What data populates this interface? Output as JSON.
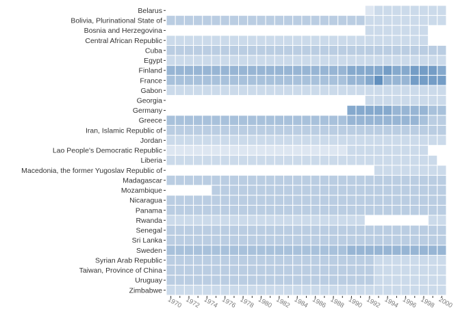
{
  "chart_data": {
    "type": "heatmap",
    "title": "",
    "xlabel": "",
    "ylabel": "",
    "color_low": "#eef2f8",
    "color_high": "#3f78b0",
    "value_range": [
      0,
      10
    ],
    "x": [
      1970,
      1971,
      1972,
      1973,
      1974,
      1975,
      1976,
      1977,
      1978,
      1979,
      1980,
      1981,
      1982,
      1983,
      1984,
      1985,
      1986,
      1987,
      1988,
      1989,
      1990,
      1991,
      1992,
      1993,
      1994,
      1995,
      1996,
      1997,
      1998,
      1999,
      2000
    ],
    "x_tick_labels": [
      "1970",
      "1972",
      "1974",
      "1976",
      "1978",
      "1980",
      "1982",
      "1984",
      "1986",
      "1988",
      "1990",
      "1992",
      "1994",
      "1996",
      "1998",
      "2000"
    ],
    "y": [
      "Belarus",
      "Bolivia, Plurinational State of",
      "Bosnia and Herzegovina",
      "Central African Republic",
      "Cuba",
      "Egypt",
      "Finland",
      "France",
      "Gabon",
      "Georgia",
      "Germany",
      "Greece",
      "Iran, Islamic Republic of",
      "Jordan",
      "Lao People's Democratic Republic",
      "Liberia",
      "Macedonia, the former Yugoslav Republic of",
      "Madagascar",
      "Mozambique",
      "Nicaragua",
      "Panama",
      "Rwanda",
      "Senegal",
      "Sri Lanka",
      "Sweden",
      "Syrian Arab Republic",
      "Taiwan, Province of China",
      "Uruguay",
      "Zimbabwe"
    ],
    "values": [
      [
        null,
        null,
        null,
        null,
        null,
        null,
        null,
        null,
        null,
        null,
        null,
        null,
        null,
        null,
        null,
        null,
        null,
        null,
        null,
        null,
        null,
        null,
        1,
        2,
        2,
        2,
        2,
        2,
        2,
        2,
        2
      ],
      [
        3,
        3,
        3,
        3,
        3,
        3,
        3,
        3,
        3,
        3,
        3,
        3,
        3,
        3,
        3,
        3,
        3,
        3,
        3,
        3,
        3,
        3,
        2,
        2,
        2,
        2,
        2,
        2,
        2,
        2,
        2
      ],
      [
        null,
        null,
        null,
        null,
        null,
        null,
        null,
        null,
        null,
        null,
        null,
        null,
        null,
        null,
        null,
        null,
        null,
        null,
        null,
        null,
        null,
        null,
        2,
        2,
        2,
        2,
        2,
        2,
        2,
        null,
        null
      ],
      [
        2,
        2,
        2,
        2,
        2,
        2,
        2,
        2,
        2,
        2,
        2,
        2,
        2,
        2,
        2,
        2,
        2,
        2,
        2,
        2,
        2,
        2,
        2,
        2,
        2,
        2,
        2,
        2,
        2,
        null,
        null
      ],
      [
        3,
        3,
        3,
        3,
        3,
        3,
        3,
        3,
        3,
        3,
        3,
        3,
        3,
        3,
        3,
        3,
        3,
        3,
        3,
        3,
        3,
        3,
        3,
        3,
        3,
        3,
        3,
        3,
        3,
        3,
        3
      ],
      [
        2,
        2,
        2,
        2,
        2,
        2,
        2,
        2,
        2,
        2,
        2,
        2,
        2,
        2,
        2,
        2,
        2,
        2,
        2,
        2,
        2,
        2,
        2,
        2,
        2,
        2,
        2,
        2,
        2,
        2,
        2
      ],
      [
        5,
        5,
        5,
        5,
        5,
        5,
        5,
        5,
        5,
        5,
        5,
        5,
        5,
        5,
        5,
        5,
        5,
        5,
        5,
        5,
        6,
        6,
        6,
        6,
        7,
        6,
        6,
        7,
        7,
        7,
        6
      ],
      [
        4,
        4,
        4,
        4,
        4,
        4,
        4,
        4,
        4,
        4,
        4,
        4,
        4,
        4,
        4,
        4,
        4,
        4,
        4,
        4,
        5,
        5,
        6,
        8,
        5,
        5,
        5,
        7,
        7,
        7,
        7
      ],
      [
        2,
        2,
        2,
        2,
        2,
        2,
        2,
        2,
        2,
        2,
        2,
        2,
        2,
        2,
        2,
        2,
        2,
        2,
        2,
        2,
        2,
        2,
        2,
        2,
        2,
        2,
        2,
        2,
        2,
        2,
        2
      ],
      [
        null,
        null,
        null,
        null,
        null,
        null,
        null,
        null,
        null,
        null,
        null,
        null,
        null,
        null,
        null,
        null,
        null,
        null,
        null,
        null,
        null,
        null,
        2,
        2,
        2,
        2,
        2,
        2,
        2,
        2,
        2
      ],
      [
        null,
        null,
        null,
        null,
        null,
        null,
        null,
        null,
        null,
        null,
        null,
        null,
        null,
        null,
        null,
        null,
        null,
        null,
        null,
        null,
        6,
        6,
        6,
        6,
        6,
        5,
        5,
        5,
        5,
        4,
        4
      ],
      [
        4,
        4,
        4,
        4,
        4,
        4,
        4,
        4,
        4,
        4,
        4,
        4,
        4,
        4,
        4,
        4,
        4,
        4,
        4,
        4,
        5,
        5,
        5,
        5,
        5,
        5,
        5,
        5,
        4,
        3,
        3
      ],
      [
        3,
        3,
        3,
        3,
        3,
        3,
        3,
        3,
        3,
        3,
        3,
        3,
        3,
        3,
        3,
        3,
        3,
        3,
        3,
        3,
        3,
        3,
        3,
        3,
        3,
        3,
        3,
        3,
        3,
        3,
        3
      ],
      [
        2,
        2,
        2,
        2,
        2,
        2,
        2,
        2,
        2,
        2,
        2,
        2,
        2,
        2,
        2,
        2,
        2,
        2,
        2,
        2,
        2,
        2,
        2,
        2,
        2,
        2,
        2,
        2,
        2,
        2,
        2
      ],
      [
        1,
        1,
        1,
        1,
        1,
        1,
        1,
        1,
        1,
        1,
        1,
        1,
        1,
        1,
        1,
        1,
        1,
        1,
        1,
        1,
        2,
        2,
        2,
        2,
        2,
        2,
        2,
        2,
        2,
        null,
        null
      ],
      [
        2,
        2,
        2,
        2,
        2,
        2,
        2,
        2,
        2,
        2,
        2,
        2,
        2,
        2,
        2,
        2,
        2,
        2,
        2,
        2,
        2,
        2,
        2,
        2,
        2,
        2,
        2,
        2,
        2,
        2,
        null
      ],
      [
        null,
        null,
        null,
        null,
        null,
        null,
        null,
        null,
        null,
        null,
        null,
        null,
        null,
        null,
        null,
        null,
        null,
        null,
        null,
        null,
        null,
        null,
        null,
        2,
        2,
        2,
        2,
        2,
        2,
        2,
        2
      ],
      [
        3,
        3,
        3,
        3,
        3,
        3,
        3,
        3,
        3,
        3,
        3,
        3,
        3,
        3,
        3,
        3,
        3,
        3,
        3,
        3,
        3,
        3,
        3,
        3,
        3,
        3,
        3,
        3,
        3,
        3,
        3
      ],
      [
        null,
        null,
        null,
        null,
        null,
        3,
        3,
        3,
        3,
        3,
        3,
        3,
        3,
        3,
        3,
        3,
        3,
        3,
        3,
        3,
        3,
        3,
        3,
        3,
        3,
        3,
        3,
        3,
        3,
        3,
        3
      ],
      [
        3,
        3,
        3,
        3,
        3,
        3,
        3,
        3,
        3,
        3,
        3,
        3,
        3,
        3,
        3,
        3,
        3,
        3,
        3,
        3,
        3,
        3,
        3,
        3,
        3,
        3,
        3,
        3,
        3,
        3,
        3
      ],
      [
        3,
        3,
        3,
        3,
        3,
        3,
        3,
        3,
        3,
        3,
        3,
        3,
        3,
        3,
        3,
        3,
        3,
        3,
        3,
        3,
        3,
        3,
        3,
        3,
        3,
        3,
        3,
        3,
        3,
        3,
        3
      ],
      [
        2,
        2,
        2,
        2,
        2,
        2,
        2,
        2,
        2,
        2,
        2,
        2,
        2,
        2,
        2,
        2,
        2,
        2,
        2,
        2,
        2,
        2,
        null,
        null,
        null,
        null,
        null,
        null,
        null,
        2,
        2
      ],
      [
        3,
        3,
        3,
        3,
        3,
        3,
        3,
        3,
        3,
        3,
        3,
        3,
        3,
        3,
        3,
        3,
        3,
        3,
        3,
        3,
        3,
        3,
        3,
        3,
        3,
        3,
        3,
        3,
        3,
        3,
        3
      ],
      [
        3,
        3,
        3,
        3,
        3,
        3,
        3,
        3,
        3,
        3,
        3,
        3,
        3,
        3,
        3,
        3,
        3,
        3,
        3,
        3,
        3,
        3,
        3,
        3,
        3,
        3,
        3,
        3,
        3,
        3,
        3
      ],
      [
        4,
        4,
        4,
        4,
        4,
        4,
        4,
        4,
        4,
        4,
        4,
        4,
        4,
        4,
        4,
        4,
        4,
        4,
        4,
        4,
        5,
        5,
        5,
        5,
        5,
        5,
        5,
        5,
        5,
        5,
        5
      ],
      [
        3,
        3,
        3,
        3,
        3,
        3,
        3,
        3,
        3,
        3,
        3,
        3,
        3,
        3,
        3,
        3,
        3,
        3,
        3,
        3,
        3,
        3,
        3,
        2,
        2,
        2,
        2,
        2,
        2,
        2,
        2
      ],
      [
        3,
        3,
        3,
        3,
        3,
        3,
        3,
        3,
        3,
        3,
        3,
        3,
        3,
        3,
        3,
        3,
        3,
        3,
        3,
        3,
        3,
        3,
        3,
        2,
        2,
        2,
        2,
        2,
        2,
        2,
        2
      ],
      [
        3,
        3,
        3,
        3,
        3,
        3,
        3,
        3,
        3,
        3,
        3,
        3,
        3,
        3,
        3,
        3,
        3,
        3,
        3,
        3,
        3,
        3,
        3,
        2,
        2,
        2,
        2,
        2,
        2,
        2,
        2
      ],
      [
        2,
        2,
        2,
        2,
        2,
        2,
        2,
        2,
        2,
        2,
        2,
        2,
        2,
        2,
        2,
        2,
        2,
        2,
        2,
        2,
        2,
        2,
        2,
        2,
        2,
        2,
        2,
        2,
        2,
        2,
        2
      ]
    ],
    "legend": "none",
    "grid": false
  }
}
